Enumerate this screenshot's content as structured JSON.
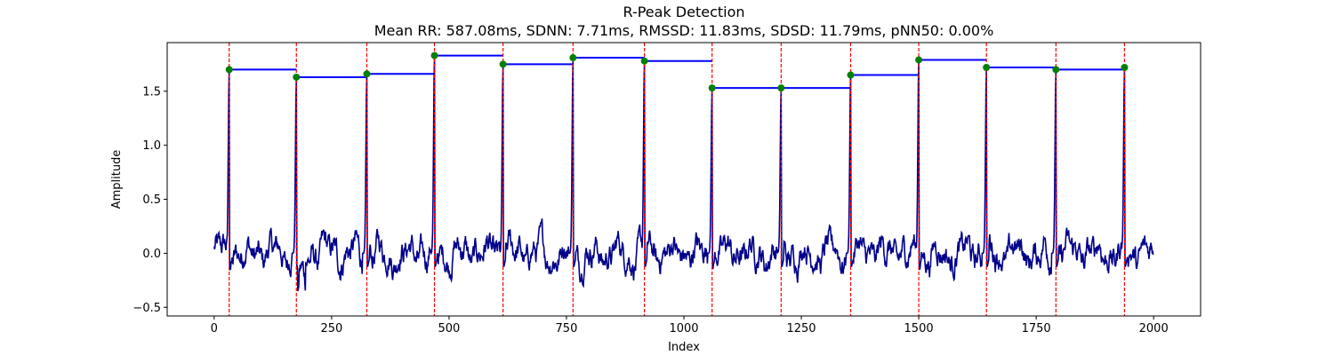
{
  "chart_data": {
    "type": "line",
    "title": "R-Peak Detection",
    "subtitle": "Mean RR: 587.08ms, SDNN: 7.71ms, RMSSD: 11.83ms, SDSD: 11.79ms, pNN50: 0.00%",
    "xlabel": "Index",
    "ylabel": "Amplitude",
    "xlim": [
      -100,
      2100
    ],
    "ylim": [
      -0.58,
      1.95
    ],
    "x_ticks": [
      0,
      250,
      500,
      750,
      1000,
      1250,
      1500,
      1750,
      2000
    ],
    "y_ticks": [
      -0.5,
      0.0,
      0.5,
      1.0,
      1.5
    ],
    "x_tick_labels": [
      "0",
      "250",
      "500",
      "750",
      "1000",
      "1250",
      "1500",
      "1750",
      "2000"
    ],
    "y_tick_labels": [
      "−0.5",
      "0.0",
      "0.5",
      "1.0",
      "1.5"
    ],
    "grid": false,
    "signal_length": 2000,
    "r_peaks": {
      "x": [
        32,
        175,
        325,
        469,
        615,
        764,
        916,
        1060,
        1207,
        1355,
        1500,
        1644,
        1792,
        1938
      ],
      "y": [
        1.7,
        1.63,
        1.66,
        1.83,
        1.75,
        1.81,
        1.78,
        1.53,
        1.53,
        1.65,
        1.79,
        1.72,
        1.7,
        1.72
      ]
    },
    "rr_segments": [
      {
        "x0": 32,
        "x1": 175,
        "y": 1.7
      },
      {
        "x0": 175,
        "x1": 325,
        "y": 1.63
      },
      {
        "x0": 325,
        "x1": 469,
        "y": 1.66
      },
      {
        "x0": 469,
        "x1": 615,
        "y": 1.83
      },
      {
        "x0": 615,
        "x1": 764,
        "y": 1.75
      },
      {
        "x0": 764,
        "x1": 916,
        "y": 1.81
      },
      {
        "x0": 916,
        "x1": 1060,
        "y": 1.78
      },
      {
        "x0": 1060,
        "x1": 1207,
        "y": 1.53
      },
      {
        "x0": 1207,
        "x1": 1355,
        "y": 1.53
      },
      {
        "x0": 1355,
        "x1": 1500,
        "y": 1.65
      },
      {
        "x0": 1500,
        "x1": 1644,
        "y": 1.79
      },
      {
        "x0": 1644,
        "x1": 1792,
        "y": 1.72
      },
      {
        "x0": 1792,
        "x1": 1938,
        "y": 1.7
      }
    ],
    "colors": {
      "signal": "#00008b",
      "peak_line": "#ff0000",
      "peak_marker": "#008000",
      "rr_segment": "#0000ff"
    }
  }
}
